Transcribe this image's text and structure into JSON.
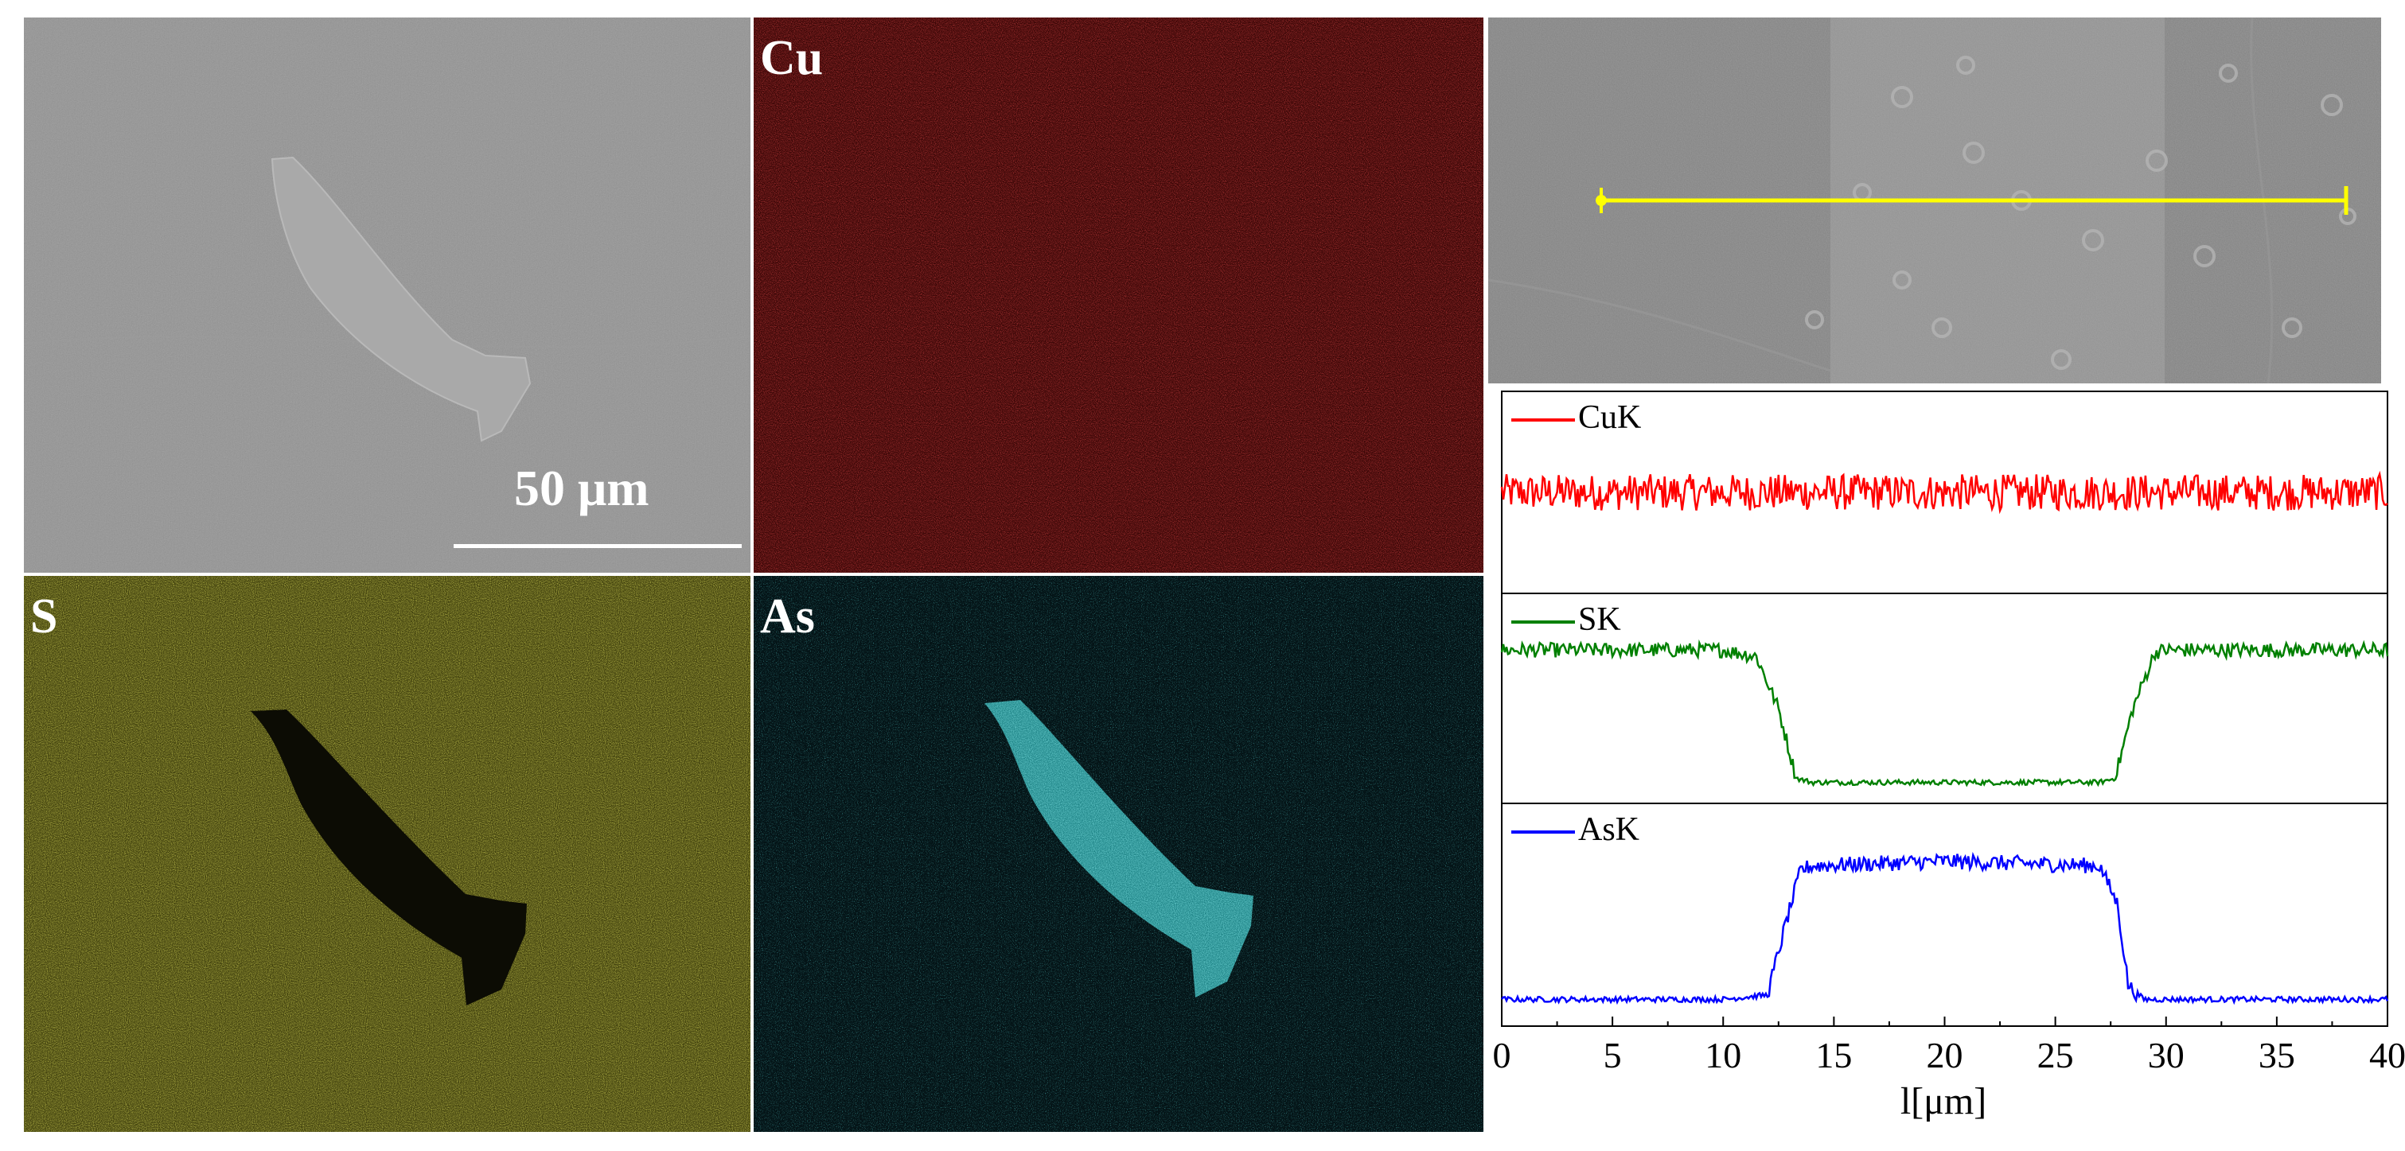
{
  "panels": {
    "sem": {
      "scale_bar_label": "50 μm"
    },
    "cu_map": {
      "label": "Cu",
      "color": "#c81414"
    },
    "s_map": {
      "label": "S",
      "color": "#c8c81e"
    },
    "as_map": {
      "label": "As",
      "color": "#1ed2d2"
    },
    "line_scan_image": {
      "line_color": "#ffff00"
    }
  },
  "chart_data": {
    "type": "line",
    "title": "",
    "xlabel": "l[μm]",
    "ylabel": "",
    "xlim": [
      0,
      40
    ],
    "x_ticks": [
      0,
      5,
      10,
      15,
      20,
      25,
      30,
      35,
      40
    ],
    "grid": false,
    "subplots": [
      {
        "name": "CuK",
        "color": "#ff0000",
        "legend": "top-left",
        "ylim": [
          0,
          1
        ],
        "x": [
          0,
          5,
          10,
          15,
          20,
          25,
          30,
          35,
          40
        ],
        "values": [
          0.5,
          0.5,
          0.5,
          0.5,
          0.5,
          0.5,
          0.5,
          0.5,
          0.5
        ]
      },
      {
        "name": "SK",
        "color": "#008000",
        "legend": "top-left",
        "ylim": [
          0,
          1
        ],
        "x": [
          0,
          5,
          10,
          11.5,
          12.5,
          13.3,
          14,
          20,
          27,
          27.7,
          28.5,
          29.5,
          30,
          35,
          40
        ],
        "values": [
          0.73,
          0.73,
          0.73,
          0.7,
          0.45,
          0.12,
          0.1,
          0.1,
          0.1,
          0.12,
          0.45,
          0.72,
          0.73,
          0.73,
          0.73
        ]
      },
      {
        "name": "AsK",
        "color": "#0000ff",
        "legend": "top-left",
        "ylim": [
          0,
          1
        ],
        "x": [
          0,
          5,
          10,
          12,
          12.8,
          13.5,
          14,
          20,
          27,
          27.8,
          28.3,
          29,
          30,
          35,
          40
        ],
        "values": [
          0.12,
          0.12,
          0.12,
          0.14,
          0.45,
          0.7,
          0.72,
          0.74,
          0.72,
          0.55,
          0.18,
          0.12,
          0.12,
          0.12,
          0.12
        ]
      }
    ]
  }
}
